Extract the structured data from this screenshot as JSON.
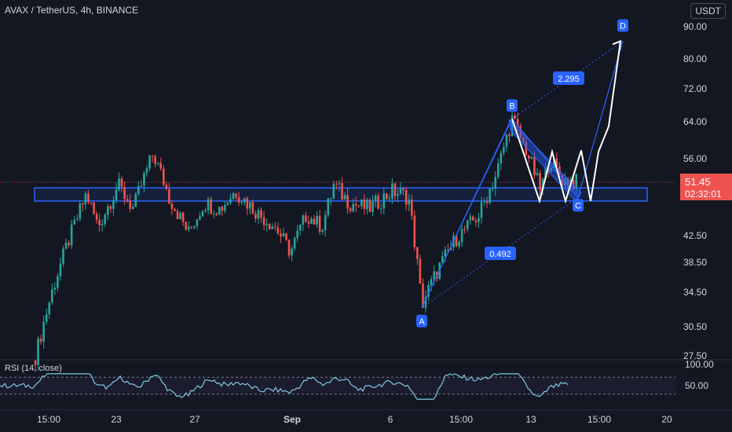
{
  "header": {
    "title": "AVAX / TetherUS, 4h, BINANCE",
    "currency": "USDT"
  },
  "price_badge": {
    "price": "51.45",
    "countdown": "02:32:01",
    "color": "#ef5350"
  },
  "rsi": {
    "label": "RSI (14, close)",
    "ticks": [
      "100.00",
      "50.00"
    ],
    "upper": 70,
    "lower": 30
  },
  "colors": {
    "up": "#26a69a",
    "down": "#ef5350",
    "pattern": "#2962ff",
    "projection": "#ffffff",
    "rsi_line": "#7ec8e3",
    "background": "#131722"
  },
  "chart_data": {
    "type": "candlestick",
    "title": "AVAX / TetherUS, 4h, BINANCE",
    "y_ticks": [
      "90.00",
      "80.00",
      "72.00",
      "64.00",
      "56.00",
      "42.50",
      "38.50",
      "34.50",
      "30.50",
      "27.50"
    ],
    "x_ticks": [
      "15:00",
      "23",
      "27",
      "Sep",
      "6",
      "15:00",
      "13",
      "15:00",
      "20"
    ],
    "current_price": 51.45,
    "support_zone": [
      48.3,
      50.5
    ],
    "harmonic_pattern": {
      "points": [
        {
          "label": "A",
          "price": 32.7
        },
        {
          "label": "B",
          "price": 64.7
        },
        {
          "label": "C",
          "price": 48.9
        },
        {
          "label": "D",
          "price": 85.5
        }
      ],
      "ratios": [
        "2.295",
        "0.492"
      ]
    },
    "projection_path": [
      64.7,
      48.3,
      57.5,
      48.3,
      57.8,
      48.3,
      57.5,
      63.0,
      85.5
    ],
    "candles_ohlc_sample": [
      [
        27.2,
        29.8,
        26.5,
        29.5
      ],
      [
        29.5,
        32.6,
        29.0,
        32.1
      ],
      [
        32.1,
        33.2,
        30.0,
        30.8
      ],
      [
        30.8,
        35.4,
        30.5,
        35.0
      ],
      [
        35.0,
        38.6,
        34.2,
        37.9
      ],
      [
        37.9,
        41.8,
        36.9,
        41.0
      ],
      [
        41.0,
        44.7,
        40.3,
        44.2
      ],
      [
        44.2,
        49.5,
        43.0,
        48.8
      ],
      [
        48.8,
        50.2,
        43.9,
        44.5
      ],
      [
        44.5,
        46.8,
        43.1,
        45.9
      ],
      [
        45.9,
        51.5,
        45.0,
        50.5
      ],
      [
        50.5,
        53.0,
        47.8,
        48.4
      ],
      [
        48.4,
        58.9,
        48.0,
        55.8
      ],
      [
        55.8,
        56.4,
        49.0,
        49.6
      ],
      [
        49.6,
        51.2,
        44.6,
        45.3
      ],
      [
        45.3,
        48.7,
        43.6,
        48.0
      ],
      [
        48.0,
        48.9,
        41.2,
        41.8
      ],
      [
        41.8,
        47.5,
        41.2,
        46.9
      ],
      [
        46.9,
        48.8,
        44.1,
        45.3
      ],
      [
        45.3,
        51.2,
        45.0,
        50.3
      ],
      [
        50.3,
        51.0,
        45.2,
        46.1
      ],
      [
        46.1,
        49.0,
        44.8,
        48.5
      ],
      [
        48.5,
        49.2,
        43.6,
        44.0
      ],
      [
        44.0,
        46.0,
        40.8,
        41.6
      ],
      [
        41.6,
        42.2,
        38.8,
        39.5
      ],
      [
        39.5,
        45.1,
        39.1,
        44.6
      ],
      [
        44.6,
        46.0,
        42.3,
        43.0
      ],
      [
        43.0,
        51.3,
        42.6,
        50.6
      ],
      [
        50.6,
        51.0,
        46.4,
        47.2
      ],
      [
        47.2,
        48.9,
        45.8,
        48.1
      ],
      [
        48.1,
        48.9,
        46.0,
        46.8
      ],
      [
        46.8,
        50.7,
        46.4,
        49.9
      ],
      [
        49.9,
        50.5,
        47.0,
        47.8
      ],
      [
        47.8,
        48.4,
        38.7,
        39.4
      ],
      [
        39.4,
        39.9,
        32.7,
        33.8
      ],
      [
        33.8,
        36.9,
        33.0,
        36.2
      ],
      [
        36.2,
        41.5,
        35.8,
        41.0
      ],
      [
        41.0,
        44.3,
        40.1,
        43.5
      ],
      [
        43.5,
        49.0,
        43.0,
        48.4
      ],
      [
        48.4,
        53.5,
        47.2,
        52.8
      ],
      [
        52.8,
        64.8,
        52.0,
        63.8
      ],
      [
        63.8,
        64.3,
        56.4,
        57.2
      ],
      [
        57.2,
        58.4,
        49.4,
        50.2
      ],
      [
        50.2,
        55.8,
        49.7,
        55.0
      ],
      [
        55.0,
        57.6,
        52.4,
        53.1
      ],
      [
        53.1,
        53.8,
        49.6,
        51.45
      ]
    ]
  }
}
